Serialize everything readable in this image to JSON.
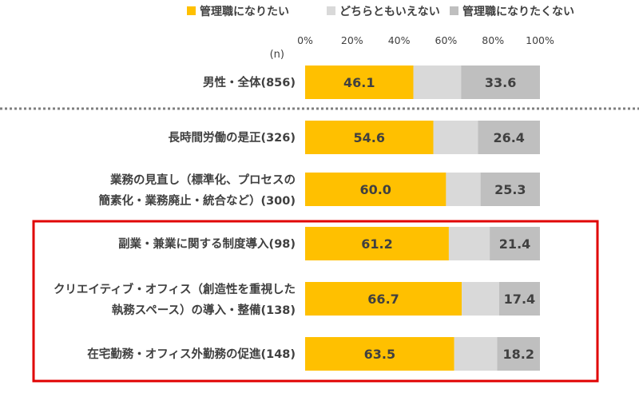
{
  "chart_data": {
    "type": "bar",
    "orientation": "horizontal",
    "stacked": true,
    "n_label": "(n)",
    "xlim": [
      0,
      100
    ],
    "x_ticks": [
      "0%",
      "20%",
      "40%",
      "60%",
      "80%",
      "100%"
    ],
    "legend_position": "top",
    "categories": [
      {
        "line1": "男性・全体(856)",
        "line2": ""
      },
      {
        "line1": "長時間労働の是正(326)",
        "line2": ""
      },
      {
        "line1": "業務の見直し（標準化、プロセスの",
        "line2": "簡素化・業務廃止・統合など）(300)"
      },
      {
        "line1": "副業・兼業に関する制度導入(98)",
        "line2": ""
      },
      {
        "line1": "クリエイティブ・オフィス（創造性を重視した",
        "line2": "執務スペース）の導入・整備(138)"
      },
      {
        "line1": "在宅勤務・オフィス外勤務の促進(148)",
        "line2": ""
      }
    ],
    "series": [
      {
        "name": "管理職になりたい",
        "color": "#FFC000",
        "values": [
          46.1,
          54.6,
          60.0,
          61.2,
          66.7,
          63.5
        ],
        "labels": [
          "46.1",
          "54.6",
          "60.0",
          "61.2",
          "66.7",
          "63.5"
        ]
      },
      {
        "name": "どちらともいえない",
        "color": "#D9D9D9",
        "values": [
          20.3,
          19.0,
          14.7,
          17.4,
          15.9,
          18.3
        ],
        "labels": [
          "",
          "",
          "",
          "",
          "",
          ""
        ]
      },
      {
        "name": "管理職になりたくない",
        "color": "#BFBFBF",
        "values": [
          33.6,
          26.4,
          25.3,
          21.4,
          17.4,
          18.2
        ],
        "labels": [
          "33.6",
          "26.4",
          "25.3",
          "21.4",
          "17.4",
          "18.2"
        ]
      }
    ],
    "separator_after_index": 0,
    "highlight_box": {
      "from_index": 3,
      "to_index": 5,
      "color": "#E00000"
    }
  }
}
